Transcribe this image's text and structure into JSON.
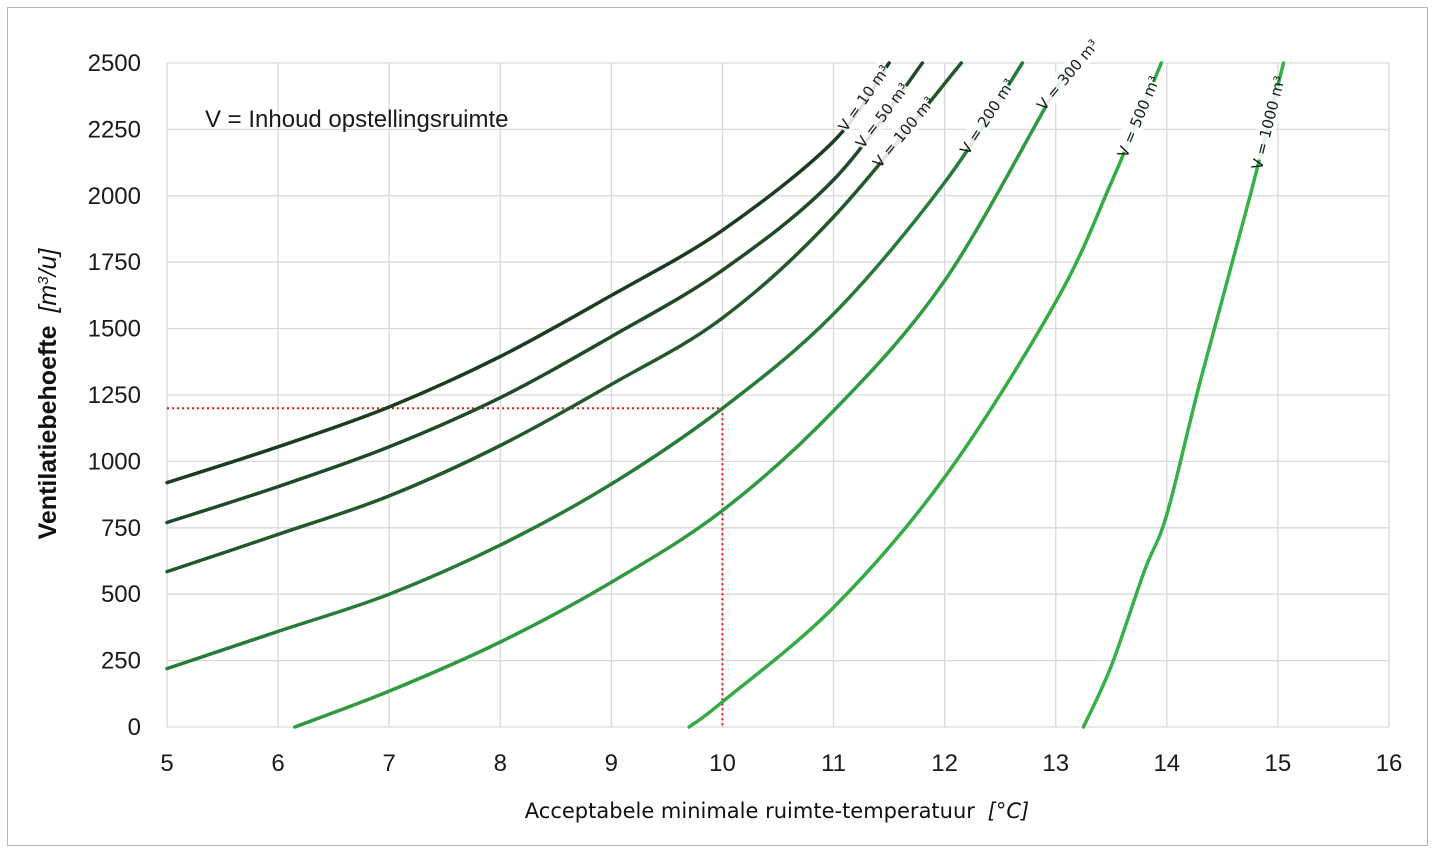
{
  "chart_data": {
    "type": "line",
    "xlabel": "Acceptabele minimale ruimte-temperatuur",
    "xlabel_unit": "[°C]",
    "ylabel": "Ventilatiebehoefte",
    "ylabel_unit_prefix": "[m",
    "ylabel_unit_sup": "3",
    "ylabel_unit_suffix": "/u]",
    "annotation": "V = Inhoud opstellingsruimte",
    "xlim": [
      5,
      16
    ],
    "ylim": [
      0,
      2500
    ],
    "x_ticks": [
      "5",
      "6",
      "7",
      "8",
      "9",
      "10",
      "11",
      "12",
      "13",
      "14",
      "15",
      "16"
    ],
    "y_ticks": [
      "0",
      "250",
      "500",
      "750",
      "1000",
      "1250",
      "1500",
      "1750",
      "2000",
      "2250",
      "2500"
    ],
    "grid": true,
    "series": [
      {
        "name": "V = 10 m³",
        "color": "#1b3c21",
        "points": [
          [
            5,
            920
          ],
          [
            6,
            1055
          ],
          [
            7,
            1205
          ],
          [
            8,
            1395
          ],
          [
            9,
            1625
          ],
          [
            10,
            1870
          ],
          [
            11,
            2205
          ],
          [
            11.5,
            2500
          ]
        ]
      },
      {
        "name": "V = 50 m³",
        "color": "#1f4a27",
        "points": [
          [
            5,
            770
          ],
          [
            6,
            905
          ],
          [
            7,
            1055
          ],
          [
            8,
            1240
          ],
          [
            9,
            1470
          ],
          [
            10,
            1720
          ],
          [
            11,
            2060
          ],
          [
            11.8,
            2500
          ]
        ]
      },
      {
        "name": "V = 100 m³",
        "color": "#23582c",
        "points": [
          [
            5,
            585
          ],
          [
            6,
            725
          ],
          [
            7,
            870
          ],
          [
            8,
            1060
          ],
          [
            9,
            1290
          ],
          [
            10,
            1540
          ],
          [
            11,
            1920
          ],
          [
            12.15,
            2500
          ]
        ]
      },
      {
        "name": "V = 200 m³",
        "color": "#287a38",
        "points": [
          [
            5,
            220
          ],
          [
            6,
            360
          ],
          [
            7,
            500
          ],
          [
            8,
            685
          ],
          [
            9,
            915
          ],
          [
            10,
            1200
          ],
          [
            11,
            1555
          ],
          [
            12,
            2050
          ],
          [
            12.7,
            2500
          ]
        ]
      },
      {
        "name": "V = 300 m³",
        "color": "#2f9a40",
        "points": [
          [
            6.15,
            0
          ],
          [
            7,
            135
          ],
          [
            8,
            320
          ],
          [
            9,
            545
          ],
          [
            10,
            815
          ],
          [
            11,
            1190
          ],
          [
            12,
            1680
          ],
          [
            13,
            2400
          ],
          [
            13.2,
            2500
          ]
        ]
      },
      {
        "name": "V = 500 m³",
        "color": "#35ab46",
        "points": [
          [
            9.7,
            0
          ],
          [
            10,
            95
          ],
          [
            11,
            450
          ],
          [
            12,
            940
          ],
          [
            13,
            1600
          ],
          [
            13.5,
            2050
          ],
          [
            13.95,
            2500
          ]
        ]
      },
      {
        "name": "V = 1000 m³",
        "color": "#38b04a",
        "points": [
          [
            13.25,
            0
          ],
          [
            13.5,
            230
          ],
          [
            13.8,
            590
          ],
          [
            14,
            800
          ],
          [
            14.3,
            1300
          ],
          [
            14.75,
            2000
          ],
          [
            15.05,
            2500
          ]
        ]
      }
    ],
    "reference_lines": [
      {
        "color": "#e01b1b",
        "x": 10,
        "y": 1200,
        "style": "dotted"
      }
    ]
  }
}
